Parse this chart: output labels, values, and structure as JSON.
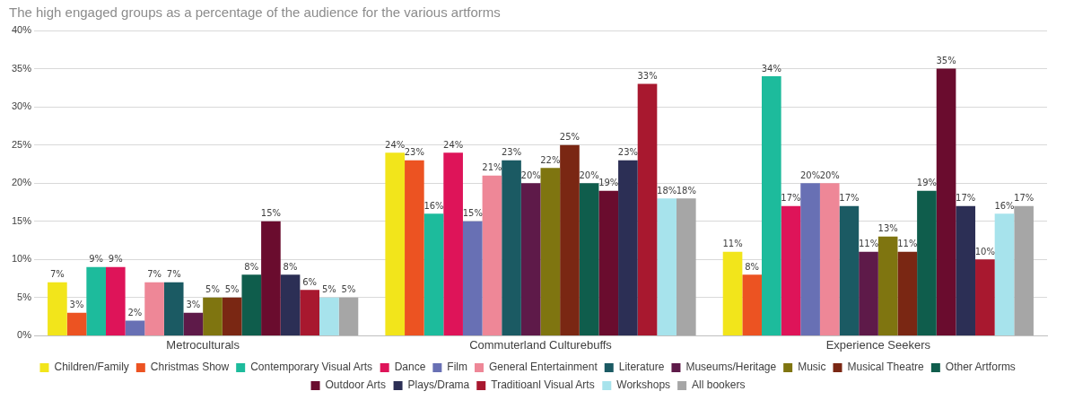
{
  "chart_data": {
    "type": "bar",
    "title": "The high engaged groups as a percentage of the audience for the various artforms",
    "categories": [
      "Metroculturals",
      "Commuterland Culturebuffs",
      "Experience Seekers"
    ],
    "ylim": [
      0,
      40
    ],
    "yticks": [
      {
        "value": 0,
        "label": "0%"
      },
      {
        "value": 5,
        "label": "5%"
      },
      {
        "value": 10,
        "label": "10%"
      },
      {
        "value": 15,
        "label": "15%"
      },
      {
        "value": 20,
        "label": "20%"
      },
      {
        "value": 25,
        "label": "25%"
      },
      {
        "value": 30,
        "label": "30%"
      },
      {
        "value": 35,
        "label": "35%"
      },
      {
        "value": 40,
        "label": "40%"
      }
    ],
    "grid": "y",
    "legend": "bottom",
    "series": [
      {
        "name": "Children/Family",
        "color": "#f2e51b",
        "values": [
          7,
          24,
          11
        ],
        "value_labels": [
          "7%",
          "24%",
          "11%"
        ]
      },
      {
        "name": "Christmas Show",
        "color": "#ec5322",
        "values": [
          3,
          23,
          8
        ],
        "value_labels": [
          "3%",
          "23%",
          "8%"
        ]
      },
      {
        "name": "Contemporary Visual Arts",
        "color": "#1dbb9c",
        "values": [
          9,
          16,
          34
        ],
        "value_labels": [
          "9%",
          "16%",
          "34%"
        ]
      },
      {
        "name": "Dance",
        "color": "#de1459",
        "values": [
          9,
          24,
          17
        ],
        "value_labels": [
          "9%",
          "24%",
          "17%"
        ]
      },
      {
        "name": "Film",
        "color": "#6870b4",
        "values": [
          2,
          15,
          20
        ],
        "value_labels": [
          "2%",
          "15%",
          "20%"
        ]
      },
      {
        "name": "General Entertainment",
        "color": "#ee8797",
        "values": [
          7,
          21,
          20
        ],
        "value_labels": [
          "7%",
          "21%",
          "20%"
        ]
      },
      {
        "name": "Literature",
        "color": "#1b5a63",
        "values": [
          7,
          23,
          17
        ],
        "value_labels": [
          "7%",
          "23%",
          "17%"
        ]
      },
      {
        "name": "Museums/Heritage",
        "color": "#5e1a49",
        "values": [
          3,
          20,
          11
        ],
        "value_labels": [
          "3%",
          "20%",
          "11%"
        ]
      },
      {
        "name": "Music",
        "color": "#7f7510",
        "values": [
          5,
          22,
          13
        ],
        "value_labels": [
          "5%",
          "22%",
          "13%"
        ]
      },
      {
        "name": "Musical Theatre",
        "color": "#7a2713",
        "values": [
          5,
          25,
          11
        ],
        "value_labels": [
          "5%",
          "25%",
          "11%"
        ]
      },
      {
        "name": "Other Artforms",
        "color": "#0f5d4c",
        "values": [
          8,
          20,
          19
        ],
        "value_labels": [
          "8%",
          "20%",
          "19%"
        ]
      },
      {
        "name": "Outdoor Arts",
        "color": "#6a0c2e",
        "values": [
          15,
          19,
          35
        ],
        "value_labels": [
          "15%",
          "19%",
          "35%"
        ]
      },
      {
        "name": "Plays/Drama",
        "color": "#2c2f55",
        "values": [
          8,
          23,
          17
        ],
        "value_labels": [
          "8%",
          "23%",
          "17%"
        ]
      },
      {
        "name": "Traditioanl Visual Arts",
        "color": "#a8182f",
        "values": [
          6,
          33,
          10
        ],
        "value_labels": [
          "6%",
          "33%",
          "10%"
        ]
      },
      {
        "name": "Workshops",
        "color": "#a7e3ec",
        "values": [
          5,
          18,
          16
        ],
        "value_labels": [
          "5%",
          "18%",
          "16%"
        ]
      },
      {
        "name": "All bookers",
        "color": "#a6a6a6",
        "values": [
          5,
          18,
          17
        ],
        "value_labels": [
          "5%",
          "18%",
          "17%"
        ]
      }
    ]
  }
}
